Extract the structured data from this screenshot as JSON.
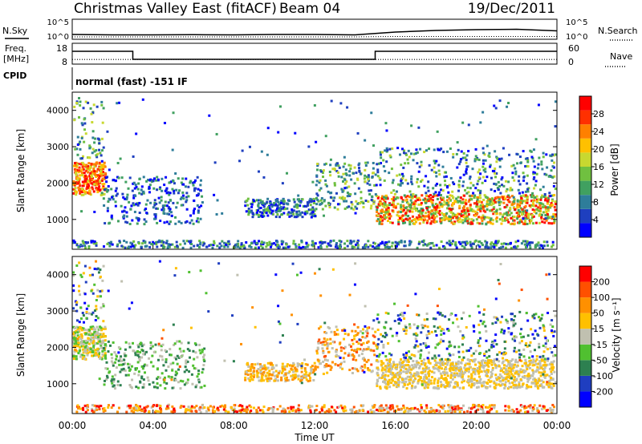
{
  "header": {
    "title": "Christmas Valley East (fitACF)",
    "beam": "Beam 04",
    "date": "19/Dec/2011"
  },
  "labels": {
    "nsky": "N.Sky",
    "nsearch": "N.Search",
    "freq_top": "Freq.",
    "freq_unit": "[MHz]",
    "nave": "Nave",
    "cpid": "CPID",
    "program": "normal (fast) -151 IF"
  },
  "chart_data": [
    {
      "type": "line",
      "name": "noise",
      "y_ticks_left": [
        "10^5",
        "10^0"
      ],
      "y_ticks_right": [
        "10^5",
        "10^0"
      ],
      "x": [
        0,
        2,
        4,
        6,
        8,
        10,
        12,
        14,
        16,
        18,
        20,
        22,
        24
      ],
      "sky_log": [
        1.2,
        1.1,
        1.1,
        1.15,
        1.1,
        1.2,
        1.2,
        1.1,
        1.8,
        2.2,
        2.4,
        2.5,
        2.1
      ],
      "search_log": [
        0.6,
        0.6,
        0.6,
        0.6,
        0.6,
        0.6,
        0.6,
        0.6,
        0.7,
        0.7,
        0.7,
        0.7,
        0.7
      ]
    },
    {
      "type": "line",
      "name": "frequency",
      "y_ticks_left": [
        "18",
        "8"
      ],
      "y_ticks_right": [
        "60",
        "0"
      ],
      "freq_segments": [
        {
          "x0": 0,
          "x1": 3.0,
          "mhz": 15.5
        },
        {
          "x0": 3.0,
          "x1": 15.0,
          "mhz": 10.5
        },
        {
          "x0": 15.0,
          "x1": 24,
          "mhz": 15.5
        }
      ],
      "nave": 12
    },
    {
      "type": "heatmap",
      "name": "power",
      "xlabel": "",
      "ylabel": "Slant Range [km]",
      "ylim": [
        180,
        4500
      ],
      "y_ticks": [
        1000,
        2000,
        3000,
        4000
      ],
      "colorbar_label": "Power [dB]",
      "colorbar_ticks": [
        "28",
        "24",
        "20",
        "16",
        "12",
        "8",
        "4"
      ],
      "colors": [
        "#0000ff",
        "#1e3fbf",
        "#2e7d9a",
        "#40a060",
        "#70c040",
        "#c8d830",
        "#ffc000",
        "#ff8000",
        "#ff3000",
        "#ff0000"
      ]
    },
    {
      "type": "heatmap",
      "name": "velocity",
      "xlabel": "Time UT",
      "ylabel": "Slant Range [km]",
      "ylim": [
        180,
        4500
      ],
      "y_ticks": [
        1000,
        2000,
        3000,
        4000
      ],
      "x_ticks": [
        "00:00",
        "04:00",
        "08:00",
        "12:00",
        "16:00",
        "20:00",
        "00:00"
      ],
      "colorbar_label": "Velocity [m s⁻¹]",
      "colorbar_ticks": [
        "200",
        "100",
        "50",
        "15",
        "-15",
        "-50",
        "-100",
        "-200"
      ],
      "colors": [
        "#0000ff",
        "#1f3ec0",
        "#2d8050",
        "#50c030",
        "#c0c0b0",
        "#ffc000",
        "#ff9000",
        "#ff5000",
        "#ff0000"
      ]
    }
  ]
}
